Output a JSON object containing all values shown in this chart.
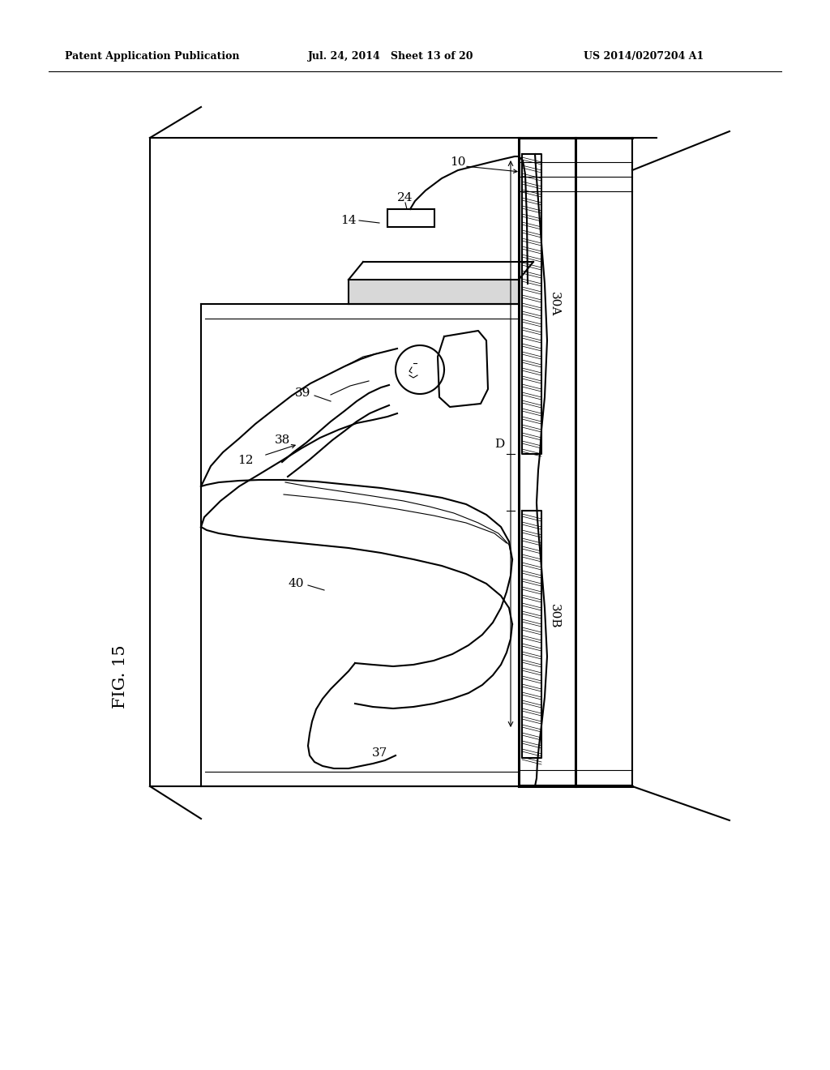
{
  "bg_color": "#ffffff",
  "line_color": "#000000",
  "header_left": "Patent Application Publication",
  "header_mid": "Jul. 24, 2014   Sheet 13 of 20",
  "header_right": "US 2014/0207204 A1",
  "fig_label": "FIG. 15"
}
